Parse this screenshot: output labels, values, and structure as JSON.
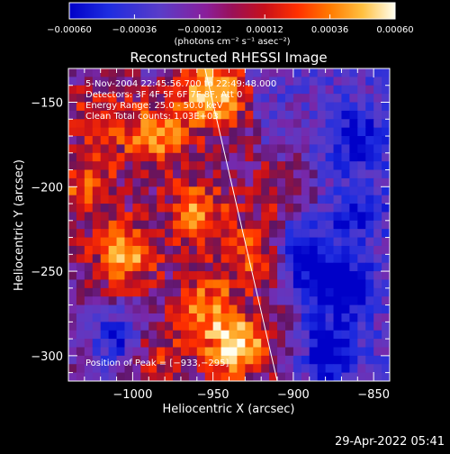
{
  "chart_data": {
    "type": "heatmap",
    "title": "Reconstructed RHESSI Image",
    "xlabel": "Heliocentric X (arcsec)",
    "ylabel": "Heliocentric Y (arcsec)",
    "xlim": [
      -1040,
      -840
    ],
    "ylim": [
      -315,
      -130
    ],
    "x_ticks": [
      -1000,
      -950,
      -900,
      -850
    ],
    "x_tick_labels": [
      "−1000",
      "−950",
      "−900",
      "−850"
    ],
    "y_ticks": [
      -150,
      -200,
      -250,
      -300
    ],
    "y_tick_labels": [
      "−150",
      "−200",
      "−250",
      "−300"
    ],
    "colorbar": {
      "range": [
        -0.0006,
        0.0006
      ],
      "ticks": [
        -0.0006,
        -0.00036,
        -0.00012,
        0.00012,
        0.00036,
        0.0006
      ],
      "tick_labels": [
        "−0.00060",
        "−0.00036",
        "−0.00012",
        "0.00012",
        "0.00036",
        "0.00060"
      ],
      "units_label": "(photons cm⁻² s⁻¹ asec⁻²)"
    },
    "annotations": [
      "5-Nov-2004 22:45:56.700 to 22:49:48.000",
      "Detectors: 3F 4F 5F 6F 7F 8F, Att 0",
      "Energy Range: 25.0 - 50.0 keV",
      "Clean      Total counts: 1.03E+03"
    ],
    "peak_label": "Position of Peak = [−933,−295]",
    "peak_position": [
      -933,
      -295
    ],
    "limb_line": [
      [
        -955,
        -130
      ],
      [
        -910,
        -315
      ]
    ],
    "bright_regions": [
      {
        "x": -950,
        "y": -145,
        "strength": 1.0
      },
      {
        "x": -935,
        "y": -295,
        "strength": 1.0
      },
      {
        "x": -1005,
        "y": -240,
        "strength": 0.85
      },
      {
        "x": -985,
        "y": -170,
        "strength": 0.75
      },
      {
        "x": -960,
        "y": -215,
        "strength": 0.7
      },
      {
        "x": -1030,
        "y": -200,
        "strength": 0.6
      },
      {
        "x": -955,
        "y": -270,
        "strength": 0.65
      },
      {
        "x": -925,
        "y": -240,
        "strength": 0.55
      },
      {
        "x": -905,
        "y": -200,
        "strength": 0.5
      },
      {
        "x": -1020,
        "y": -160,
        "strength": 0.5
      },
      {
        "x": -985,
        "y": -300,
        "strength": 0.45
      }
    ],
    "dark_regions": [
      {
        "x": -1010,
        "y": -290,
        "strength": 0.8
      },
      {
        "x": -870,
        "y": -260,
        "strength": 0.9
      },
      {
        "x": -880,
        "y": -300,
        "strength": 0.8
      },
      {
        "x": -860,
        "y": -170,
        "strength": 0.7
      },
      {
        "x": -895,
        "y": -240,
        "strength": 0.8
      },
      {
        "x": -860,
        "y": -215,
        "strength": 0.6
      }
    ]
  },
  "footer": {
    "timestamp": "29-Apr-2022 05:41"
  }
}
